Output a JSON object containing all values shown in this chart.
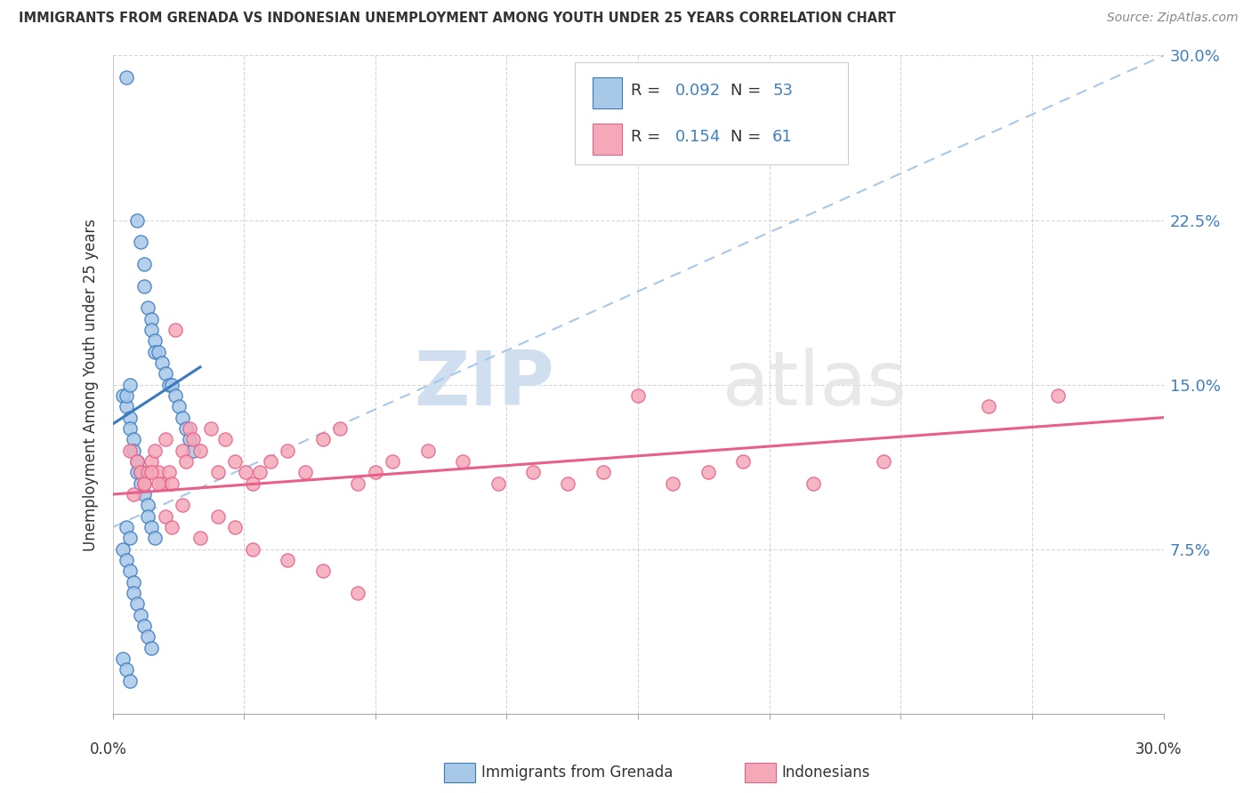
{
  "title": "IMMIGRANTS FROM GRENADA VS INDONESIAN UNEMPLOYMENT AMONG YOUTH UNDER 25 YEARS CORRELATION CHART",
  "source": "Source: ZipAtlas.com",
  "ylabel": "Unemployment Among Youth under 25 years",
  "xlim": [
    0,
    30
  ],
  "ylim": [
    0,
    30
  ],
  "color_blue": "#a8c8e8",
  "color_pink": "#f4a8b8",
  "color_blue_line": "#3a7abf",
  "color_pink_line": "#e8608a",
  "color_blue_dash": "#a8c8e8",
  "color_text_blue": "#4080c0",
  "background_color": "#ffffff",
  "grenada_x": [
    0.4,
    0.7,
    0.8,
    0.9,
    0.9,
    1.0,
    1.1,
    1.1,
    1.2,
    1.2,
    1.3,
    1.4,
    1.5,
    1.6,
    1.7,
    1.8,
    1.9,
    2.0,
    2.1,
    2.2,
    2.3,
    0.3,
    0.4,
    0.5,
    0.5,
    0.6,
    0.6,
    0.7,
    0.7,
    0.8,
    0.8,
    0.9,
    1.0,
    1.0,
    1.1,
    1.2,
    0.3,
    0.4,
    0.5,
    0.6,
    0.6,
    0.7,
    0.8,
    0.9,
    1.0,
    1.1,
    0.3,
    0.4,
    0.5,
    0.4,
    0.5,
    0.4,
    0.5
  ],
  "grenada_y": [
    29.0,
    22.5,
    21.5,
    20.5,
    19.5,
    18.5,
    18.0,
    17.5,
    17.0,
    16.5,
    16.5,
    16.0,
    15.5,
    15.0,
    15.0,
    14.5,
    14.0,
    13.5,
    13.0,
    12.5,
    12.0,
    14.5,
    14.0,
    13.5,
    13.0,
    12.5,
    12.0,
    11.5,
    11.0,
    11.0,
    10.5,
    10.0,
    9.5,
    9.0,
    8.5,
    8.0,
    7.5,
    7.0,
    6.5,
    6.0,
    5.5,
    5.0,
    4.5,
    4.0,
    3.5,
    3.0,
    2.5,
    2.0,
    1.5,
    8.5,
    8.0,
    14.5,
    15.0
  ],
  "indonesian_x": [
    0.5,
    0.7,
    0.8,
    0.9,
    1.0,
    1.1,
    1.2,
    1.3,
    1.4,
    1.5,
    1.6,
    1.7,
    1.8,
    2.0,
    2.1,
    2.2,
    2.3,
    2.5,
    2.8,
    3.0,
    3.2,
    3.5,
    3.8,
    4.0,
    4.2,
    4.5,
    5.0,
    5.5,
    6.0,
    6.5,
    7.0,
    7.5,
    8.0,
    9.0,
    10.0,
    11.0,
    12.0,
    13.0,
    14.0,
    15.0,
    16.0,
    17.0,
    18.0,
    20.0,
    22.0,
    25.0,
    27.0,
    0.6,
    0.9,
    1.1,
    1.3,
    1.5,
    1.7,
    2.0,
    2.5,
    3.0,
    3.5,
    4.0,
    5.0,
    6.0,
    7.0
  ],
  "indonesian_y": [
    12.0,
    11.5,
    11.0,
    10.5,
    11.0,
    11.5,
    12.0,
    11.0,
    10.5,
    12.5,
    11.0,
    10.5,
    17.5,
    12.0,
    11.5,
    13.0,
    12.5,
    12.0,
    13.0,
    11.0,
    12.5,
    11.5,
    11.0,
    10.5,
    11.0,
    11.5,
    12.0,
    11.0,
    12.5,
    13.0,
    10.5,
    11.0,
    11.5,
    12.0,
    11.5,
    10.5,
    11.0,
    10.5,
    11.0,
    14.5,
    10.5,
    11.0,
    11.5,
    10.5,
    11.5,
    14.0,
    14.5,
    10.0,
    10.5,
    11.0,
    10.5,
    9.0,
    8.5,
    9.5,
    8.0,
    9.0,
    8.5,
    7.5,
    7.0,
    6.5,
    5.5
  ],
  "blue_line_x": [
    0.0,
    2.5
  ],
  "blue_line_y": [
    13.2,
    15.8
  ],
  "dash_line_x": [
    0.0,
    30.0
  ],
  "dash_line_y": [
    8.5,
    30.0
  ],
  "pink_line_x": [
    0.0,
    30.0
  ],
  "pink_line_y": [
    10.0,
    13.5
  ],
  "ytick_vals": [
    7.5,
    15.0,
    22.5,
    30.0
  ],
  "ytick_labels": [
    "7.5%",
    "15.0%",
    "22.5%",
    "30.0%"
  ],
  "xtick_vals": [
    0,
    3.75,
    7.5,
    11.25,
    15.0,
    18.75,
    22.5,
    26.25,
    30.0
  ]
}
